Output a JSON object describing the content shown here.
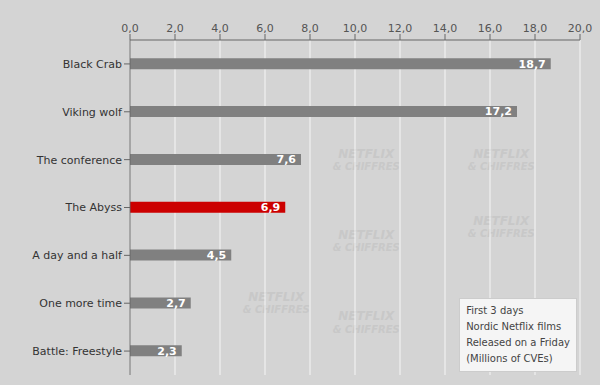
{
  "chart_data": {
    "type": "bar",
    "orientation": "horizontal",
    "categories": [
      "Battle: Freestyle",
      "One more time",
      "A day and a half",
      "The Abyss",
      "The conference",
      "Viking wolf",
      "Black Crab"
    ],
    "values": [
      2.3,
      2.7,
      4.5,
      6.9,
      7.6,
      17.2,
      18.7
    ],
    "value_labels": [
      "2,3",
      "2,7",
      "4,5",
      "6,9",
      "7,6",
      "17,2",
      "18,7"
    ],
    "data_labels": true,
    "colors": [
      "#808080",
      "#808080",
      "#808080",
      "#cc0000",
      "#808080",
      "#808080",
      "#808080"
    ],
    "xlim": [
      0,
      20
    ],
    "xticks": [
      {
        "value": 0,
        "label": "0,0"
      },
      {
        "value": 2,
        "label": "2,0"
      },
      {
        "value": 4,
        "label": "4,0"
      },
      {
        "value": 6,
        "label": "6,0"
      },
      {
        "value": 8,
        "label": "8,0"
      },
      {
        "value": 10,
        "label": "10,0"
      },
      {
        "value": 12,
        "label": "12,0"
      },
      {
        "value": 14,
        "label": "14,0"
      },
      {
        "value": 16,
        "label": "16,0"
      },
      {
        "value": 18,
        "label": "18,0"
      },
      {
        "value": 20,
        "label": "20,0"
      }
    ],
    "grid": true,
    "annotations": [
      [
        "NETFLIX",
        "& CHIFFRES"
      ],
      [
        "NETFLIX",
        "& CHIFFRES"
      ],
      [
        "NETFLIX",
        "& CHIFFRES"
      ],
      [
        "NETFLIX",
        "& CHIFFRES"
      ],
      [
        "NETFLIX",
        "& CHIFFRES"
      ],
      [
        "NETFLIX",
        "& CHIFFRES"
      ],
      [
        "First 3 days",
        "Nordic Netflix films",
        "Released on a Friday",
        "(Millions of CVEs)"
      ]
    ]
  }
}
